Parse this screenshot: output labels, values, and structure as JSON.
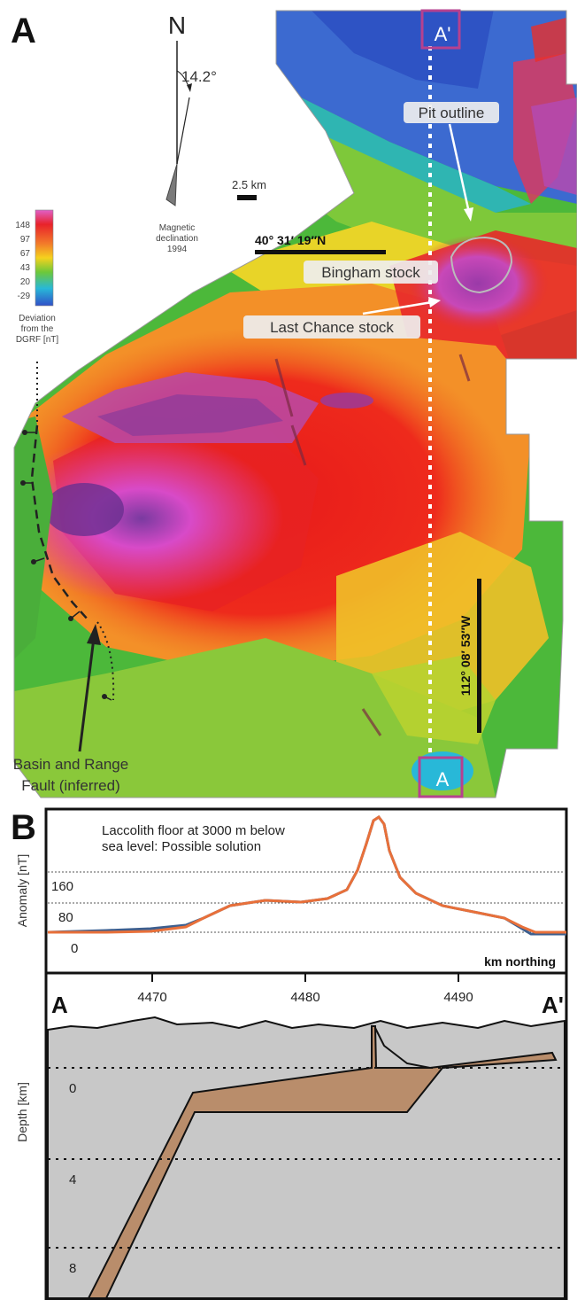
{
  "panel_a": {
    "letter": "A",
    "north_label": "N",
    "declination_angle": "14.2°",
    "declination_caption_1": "Magnetic",
    "declination_caption_2": "declination",
    "declination_caption_3": "1994",
    "scale_bar": "2.5 km",
    "lat_label": "40° 31′ 19″N",
    "lon_label": "112° 08′ 53″W",
    "legend": {
      "values": [
        "148",
        "97",
        "67",
        "43",
        "20",
        "-29"
      ],
      "caption_1": "Deviation",
      "caption_2": "from the",
      "caption_3": "DGRF [nT]"
    },
    "pit_outline": "Pit outline",
    "bingham_stock": "Bingham stock",
    "last_chance_stock": "Last Chance stock",
    "fault_1": "Basin and Range",
    "fault_2": "Fault (inferred)",
    "section_end_top": "A'",
    "section_end_bottom": "A"
  },
  "panel_b": {
    "letter": "B",
    "note_1": "Laccolith floor at 3000 m below",
    "note_2": "sea level: Possible solution",
    "anomaly_axis_label": "Anomaly [nT]",
    "anomaly_ticks": [
      "160",
      "80",
      "0"
    ],
    "x_axis_label": "km northing",
    "x_ticks": [
      "4470",
      "4480",
      "4490"
    ],
    "end_left": "A",
    "end_right": "A'",
    "depth_axis_label": "Depth [km]",
    "depth_ticks": [
      "0",
      "4",
      "8"
    ]
  },
  "colors": {
    "observed_line": "#3d5f8f",
    "model_line": "#e8703a",
    "crust": "#c8c8c8",
    "intrusion": "#b98d6b",
    "section_box": "#b6418f"
  }
}
